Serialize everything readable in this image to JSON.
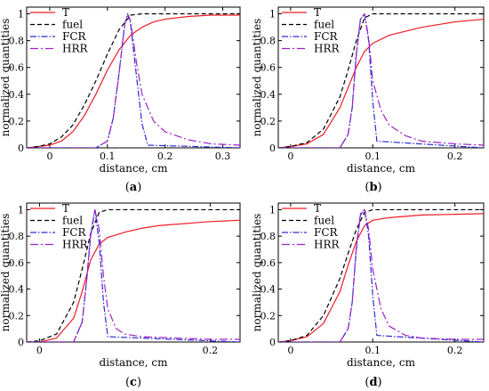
{
  "figure": {
    "ylabel": "normalized quantities",
    "xlabel": "distance, cm"
  },
  "series_styles": [
    {
      "name": "T",
      "color": "#ee1c24",
      "dash": "none"
    },
    {
      "name": "fuel",
      "color": "#000000",
      "dash": "5,3"
    },
    {
      "name": "FCR",
      "color": "#2b2bd4",
      "dash": "7,2,1.5,2"
    },
    {
      "name": "HRR",
      "color": "#a020c8",
      "dash": "9,3,2,3"
    }
  ],
  "chart_data": [
    {
      "panel": "a",
      "type": "line",
      "xlabel": "distance, cm",
      "ylabel": "normalized quantities",
      "xlim": [
        -0.04,
        0.33
      ],
      "ylim": [
        0,
        1.05
      ],
      "xticks": [
        0,
        0.1,
        0.2,
        0.3
      ],
      "xtick_labels": [
        "0",
        "0.1",
        "0.2",
        "0.3"
      ],
      "yticks": [
        0,
        0.2,
        0.4,
        0.6,
        0.8,
        1
      ],
      "ytick_labels": [
        "0",
        "0.2",
        "0.4",
        "0.6",
        "0.8",
        "1"
      ],
      "legend": [
        "T",
        "fuel",
        "FCR",
        "HRR"
      ],
      "legend_position": "top-left",
      "series": [
        {
          "name": "T",
          "x": [
            -0.04,
            -0.02,
            0.0,
            0.02,
            0.04,
            0.06,
            0.08,
            0.1,
            0.12,
            0.14,
            0.16,
            0.18,
            0.2,
            0.24,
            0.28,
            0.33
          ],
          "y": [
            0.0,
            0.01,
            0.02,
            0.05,
            0.12,
            0.24,
            0.4,
            0.58,
            0.73,
            0.84,
            0.9,
            0.94,
            0.96,
            0.98,
            0.99,
            0.99
          ]
        },
        {
          "name": "fuel",
          "x": [
            -0.04,
            -0.02,
            0.0,
            0.02,
            0.04,
            0.06,
            0.08,
            0.1,
            0.12,
            0.14,
            0.16,
            0.33
          ],
          "y": [
            0.0,
            0.01,
            0.03,
            0.08,
            0.17,
            0.32,
            0.5,
            0.7,
            0.88,
            0.99,
            1.0,
            1.0
          ]
        },
        {
          "name": "FCR",
          "x": [
            -0.04,
            0.08,
            0.1,
            0.11,
            0.12,
            0.13,
            0.135,
            0.14,
            0.15,
            0.16,
            0.17,
            0.33
          ],
          "y": [
            0.0,
            0.0,
            0.05,
            0.22,
            0.55,
            0.92,
            1.0,
            0.93,
            0.55,
            0.18,
            0.02,
            0.0
          ]
        },
        {
          "name": "HRR",
          "x": [
            -0.04,
            0.08,
            0.1,
            0.11,
            0.12,
            0.13,
            0.135,
            0.14,
            0.15,
            0.16,
            0.18,
            0.2,
            0.24,
            0.28,
            0.33
          ],
          "y": [
            0.0,
            0.0,
            0.05,
            0.22,
            0.55,
            0.92,
            1.0,
            0.95,
            0.65,
            0.4,
            0.2,
            0.12,
            0.06,
            0.03,
            0.02
          ]
        }
      ],
      "label": "a"
    },
    {
      "panel": "b",
      "type": "line",
      "xlabel": "distance, cm",
      "ylabel": "normalized quantities",
      "xlim": [
        -0.015,
        0.235
      ],
      "ylim": [
        0,
        1.05
      ],
      "xticks": [
        0,
        0.1,
        0.2
      ],
      "xtick_labels": [
        "0",
        "0.1",
        "0.2"
      ],
      "yticks": [
        0,
        0.2,
        0.4,
        0.6,
        0.8,
        1
      ],
      "ytick_labels": [
        "0",
        "0.2",
        "0.4",
        "0.6",
        "0.8",
        "1"
      ],
      "legend": [
        "T",
        "fuel",
        "FCR",
        "HRR"
      ],
      "legend_position": "top-left",
      "series": [
        {
          "name": "T",
          "x": [
            -0.015,
            0.0,
            0.02,
            0.04,
            0.06,
            0.07,
            0.08,
            0.09,
            0.1,
            0.12,
            0.14,
            0.16,
            0.18,
            0.2,
            0.235
          ],
          "y": [
            0.0,
            0.01,
            0.03,
            0.1,
            0.3,
            0.45,
            0.6,
            0.72,
            0.78,
            0.84,
            0.87,
            0.9,
            0.92,
            0.94,
            0.96
          ]
        },
        {
          "name": "fuel",
          "x": [
            -0.015,
            0.0,
            0.02,
            0.04,
            0.06,
            0.07,
            0.08,
            0.09,
            0.1,
            0.235
          ],
          "y": [
            0.0,
            0.01,
            0.04,
            0.14,
            0.38,
            0.58,
            0.8,
            0.97,
            1.0,
            1.0
          ]
        },
        {
          "name": "FCR",
          "x": [
            -0.015,
            0.06,
            0.07,
            0.075,
            0.08,
            0.085,
            0.09,
            0.095,
            0.1,
            0.105,
            0.235
          ],
          "y": [
            0.0,
            0.0,
            0.1,
            0.3,
            0.7,
            0.96,
            1.0,
            0.8,
            0.35,
            0.05,
            0.0
          ]
        },
        {
          "name": "HRR",
          "x": [
            -0.015,
            0.06,
            0.07,
            0.075,
            0.08,
            0.085,
            0.09,
            0.095,
            0.1,
            0.11,
            0.12,
            0.14,
            0.16,
            0.2,
            0.235
          ],
          "y": [
            0.0,
            0.0,
            0.1,
            0.3,
            0.7,
            0.96,
            1.0,
            0.82,
            0.5,
            0.28,
            0.17,
            0.09,
            0.05,
            0.03,
            0.02
          ]
        }
      ],
      "label": "b"
    },
    {
      "panel": "c",
      "type": "line",
      "xlabel": "distance, cm",
      "ylabel": "normalized quantities",
      "xlim": [
        -0.015,
        0.235
      ],
      "ylim": [
        0,
        1.05
      ],
      "xticks": [
        0,
        0.2
      ],
      "xtick_labels": [
        "0",
        "0.2"
      ],
      "yticks": [
        0,
        0.2,
        0.4,
        0.6,
        0.8,
        1
      ],
      "ytick_labels": [
        "0",
        "0.2",
        "0.4",
        "0.6",
        "0.8",
        "1"
      ],
      "legend": [
        "T",
        "fuel",
        "FCR",
        "HRR"
      ],
      "legend_position": "top-left",
      "series": [
        {
          "name": "T",
          "x": [
            -0.015,
            0.0,
            0.02,
            0.04,
            0.05,
            0.06,
            0.07,
            0.08,
            0.1,
            0.12,
            0.14,
            0.16,
            0.18,
            0.2,
            0.235
          ],
          "y": [
            0.0,
            0.0,
            0.03,
            0.18,
            0.38,
            0.62,
            0.74,
            0.79,
            0.83,
            0.86,
            0.88,
            0.89,
            0.9,
            0.91,
            0.92
          ]
        },
        {
          "name": "fuel",
          "x": [
            -0.015,
            0.0,
            0.02,
            0.04,
            0.05,
            0.06,
            0.07,
            0.08,
            0.235
          ],
          "y": [
            0.0,
            0.01,
            0.06,
            0.3,
            0.55,
            0.82,
            0.98,
            1.0,
            1.0
          ]
        },
        {
          "name": "FCR",
          "x": [
            -0.015,
            0.04,
            0.05,
            0.055,
            0.06,
            0.065,
            0.07,
            0.075,
            0.08,
            0.235
          ],
          "y": [
            0.0,
            0.0,
            0.15,
            0.45,
            0.8,
            1.0,
            0.75,
            0.3,
            0.04,
            0.0
          ]
        },
        {
          "name": "HRR",
          "x": [
            -0.015,
            0.04,
            0.05,
            0.055,
            0.06,
            0.065,
            0.07,
            0.075,
            0.08,
            0.09,
            0.1,
            0.12,
            0.16,
            0.2,
            0.235
          ],
          "y": [
            0.0,
            0.0,
            0.15,
            0.45,
            0.82,
            1.0,
            0.85,
            0.5,
            0.25,
            0.1,
            0.06,
            0.04,
            0.03,
            0.02,
            0.02
          ]
        }
      ],
      "label": "c"
    },
    {
      "panel": "d",
      "type": "line",
      "xlabel": "distance, cm",
      "ylabel": "normalized quantities",
      "xlim": [
        -0.015,
        0.235
      ],
      "ylim": [
        0,
        1.05
      ],
      "xticks": [
        0,
        0.1,
        0.2
      ],
      "xtick_labels": [
        "0",
        "0.1",
        "0.2"
      ],
      "yticks": [
        0,
        0.2,
        0.4,
        0.6,
        0.8,
        1
      ],
      "ytick_labels": [
        "0",
        "0.2",
        "0.4",
        "0.6",
        "0.8",
        "1"
      ],
      "legend": [
        "T",
        "fuel",
        "FCR",
        "HRR"
      ],
      "legend_position": "top-left",
      "series": [
        {
          "name": "T",
          "x": [
            -0.015,
            0.0,
            0.02,
            0.04,
            0.06,
            0.07,
            0.08,
            0.09,
            0.1,
            0.12,
            0.14,
            0.16,
            0.2,
            0.235
          ],
          "y": [
            0.0,
            0.01,
            0.04,
            0.14,
            0.38,
            0.58,
            0.76,
            0.88,
            0.92,
            0.94,
            0.95,
            0.96,
            0.965,
            0.97
          ]
        },
        {
          "name": "fuel",
          "x": [
            -0.015,
            0.0,
            0.02,
            0.04,
            0.06,
            0.07,
            0.08,
            0.09,
            0.1,
            0.235
          ],
          "y": [
            0.0,
            0.01,
            0.05,
            0.2,
            0.48,
            0.67,
            0.85,
            0.98,
            1.0,
            1.0
          ]
        },
        {
          "name": "FCR",
          "x": [
            -0.015,
            0.06,
            0.07,
            0.075,
            0.08,
            0.085,
            0.09,
            0.095,
            0.1,
            0.105,
            0.235
          ],
          "y": [
            0.0,
            0.0,
            0.1,
            0.3,
            0.7,
            0.96,
            1.0,
            0.8,
            0.35,
            0.05,
            0.0
          ]
        },
        {
          "name": "HRR",
          "x": [
            -0.015,
            0.06,
            0.07,
            0.075,
            0.08,
            0.085,
            0.09,
            0.095,
            0.1,
            0.11,
            0.12,
            0.14,
            0.16,
            0.2,
            0.235
          ],
          "y": [
            0.0,
            0.0,
            0.1,
            0.3,
            0.72,
            0.97,
            1.0,
            0.85,
            0.55,
            0.25,
            0.12,
            0.05,
            0.03,
            0.02,
            0.02
          ]
        }
      ],
      "label": "d"
    }
  ]
}
